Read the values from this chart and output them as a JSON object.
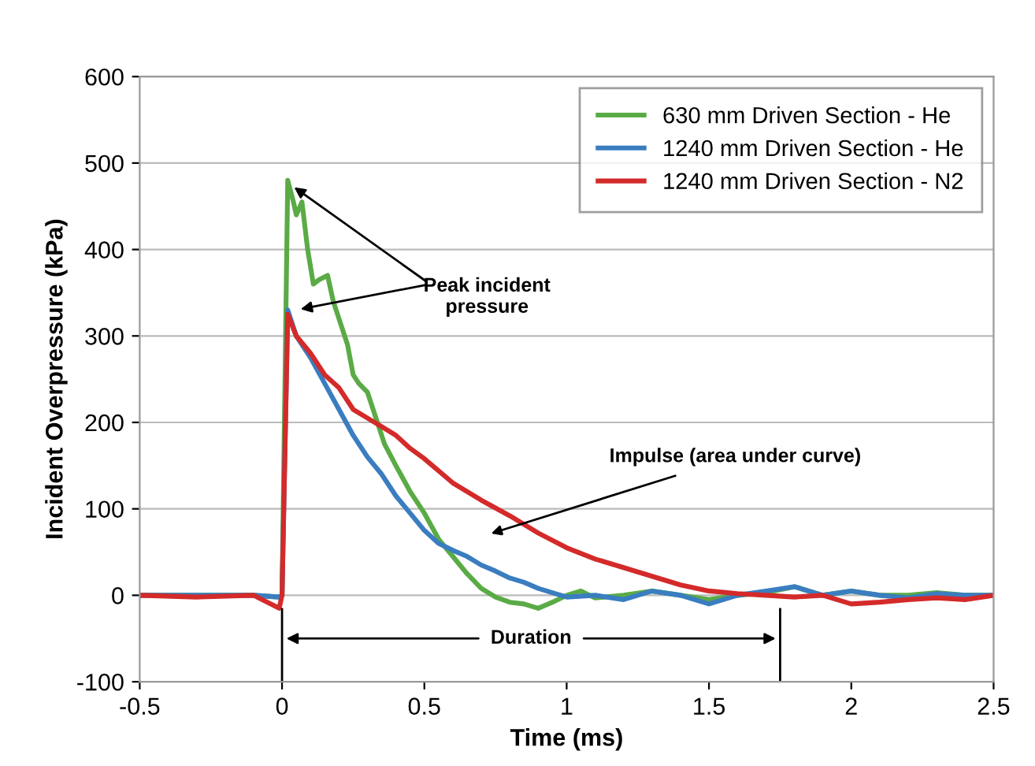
{
  "chart_data": {
    "type": "line",
    "xlabel": "Time (ms)",
    "ylabel": "Incident Overpressure (kPa)",
    "xlim": [
      -0.5,
      2.5
    ],
    "xticks": [
      -0.5,
      0,
      0.5,
      1,
      1.5,
      2,
      2.5
    ],
    "ylim": [
      -100,
      600
    ],
    "yticks": [
      -100,
      0,
      100,
      200,
      300,
      400,
      500,
      600
    ],
    "grid": "y",
    "legend": "top right",
    "series": [
      {
        "name": "630 mm Driven Section - He",
        "color": "#5aab46",
        "x": [
          -0.5,
          -0.3,
          -0.1,
          -0.01,
          0.0,
          0.02,
          0.04,
          0.05,
          0.07,
          0.09,
          0.11,
          0.13,
          0.16,
          0.18,
          0.2,
          0.23,
          0.25,
          0.27,
          0.3,
          0.33,
          0.36,
          0.4,
          0.45,
          0.5,
          0.55,
          0.6,
          0.65,
          0.7,
          0.75,
          0.8,
          0.85,
          0.9,
          0.95,
          1.0,
          1.05,
          1.1,
          1.2,
          1.3,
          1.4,
          1.5,
          1.6,
          1.7,
          1.8,
          1.9,
          2.0,
          2.1,
          2.2,
          2.3,
          2.4,
          2.5
        ],
        "values": [
          0,
          0,
          0,
          -2,
          0,
          480,
          455,
          440,
          455,
          400,
          360,
          365,
          370,
          340,
          320,
          290,
          255,
          245,
          235,
          205,
          175,
          150,
          120,
          95,
          65,
          45,
          25,
          8,
          -2,
          -8,
          -10,
          -15,
          -8,
          0,
          5,
          -3,
          0,
          5,
          0,
          -5,
          0,
          3,
          10,
          0,
          5,
          0,
          0,
          3,
          0,
          0
        ]
      },
      {
        "name": "1240 mm Driven Section - He",
        "color": "#3a7dc0",
        "x": [
          -0.5,
          -0.3,
          -0.1,
          -0.01,
          0.0,
          0.02,
          0.05,
          0.1,
          0.15,
          0.2,
          0.25,
          0.3,
          0.35,
          0.4,
          0.45,
          0.5,
          0.55,
          0.6,
          0.65,
          0.7,
          0.75,
          0.8,
          0.85,
          0.9,
          0.95,
          1.0,
          1.1,
          1.2,
          1.3,
          1.4,
          1.5,
          1.6,
          1.7,
          1.8,
          1.9,
          2.0,
          2.1,
          2.2,
          2.3,
          2.4,
          2.5
        ],
        "values": [
          0,
          0,
          0,
          -2,
          0,
          330,
          300,
          275,
          245,
          215,
          185,
          160,
          140,
          115,
          95,
          75,
          60,
          52,
          45,
          35,
          28,
          20,
          15,
          8,
          3,
          -2,
          0,
          -5,
          5,
          0,
          -10,
          0,
          5,
          10,
          0,
          5,
          0,
          -3,
          2,
          0,
          0
        ]
      },
      {
        "name": "1240 mm Driven Section - N2",
        "color": "#d42a2a",
        "x": [
          -0.5,
          -0.3,
          -0.1,
          -0.01,
          0.0,
          0.02,
          0.05,
          0.1,
          0.15,
          0.2,
          0.25,
          0.3,
          0.35,
          0.4,
          0.45,
          0.5,
          0.6,
          0.7,
          0.8,
          0.9,
          1.0,
          1.1,
          1.2,
          1.3,
          1.4,
          1.5,
          1.6,
          1.7,
          1.8,
          1.9,
          2.0,
          2.1,
          2.2,
          2.3,
          2.4,
          2.5
        ],
        "values": [
          0,
          -2,
          0,
          -15,
          0,
          325,
          300,
          280,
          255,
          240,
          215,
          205,
          195,
          185,
          170,
          158,
          130,
          110,
          92,
          72,
          55,
          42,
          32,
          22,
          12,
          5,
          2,
          0,
          -2,
          0,
          -10,
          -8,
          -5,
          -3,
          -5,
          0
        ]
      }
    ],
    "annotations": [
      {
        "text": "Peak incident\npressure",
        "x": 0.03,
        "y": 475
      },
      "Impulse (area under curve)",
      "Duration"
    ],
    "ref_lines": [
      {
        "axis": "x",
        "value": 0,
        "color": "#000000"
      },
      {
        "axis": "x",
        "value": 1.75,
        "color": "#000000"
      }
    ]
  }
}
